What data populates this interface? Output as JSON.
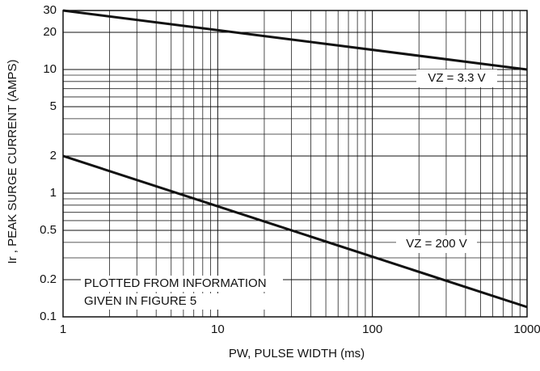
{
  "chart_data": {
    "type": "line",
    "x_label": "PW, PULSE WIDTH (ms)",
    "y_label": "Ir , PEAK SURGE CURRENT (AMPS)",
    "annotation": [
      "PLOTTED FROM INFORMATION",
      "GIVEN IN FIGURE 5"
    ],
    "x": [
      1,
      1000
    ],
    "series": [
      {
        "name": "VZ = 3.3 V",
        "color": "#111111",
        "values": [
          30,
          10
        ]
      },
      {
        "name": "VZ = 200 V",
        "color": "#111111",
        "values": [
          2,
          0.12
        ]
      }
    ],
    "xlim": [
      1,
      1000
    ],
    "xticks": [
      1,
      10,
      100,
      1000
    ],
    "ylim": [
      0.1,
      30
    ],
    "yticks": [
      0.1,
      0.2,
      0.5,
      1,
      2,
      5,
      10,
      20,
      30
    ],
    "log_x": true,
    "log_y": true,
    "grid": true
  }
}
